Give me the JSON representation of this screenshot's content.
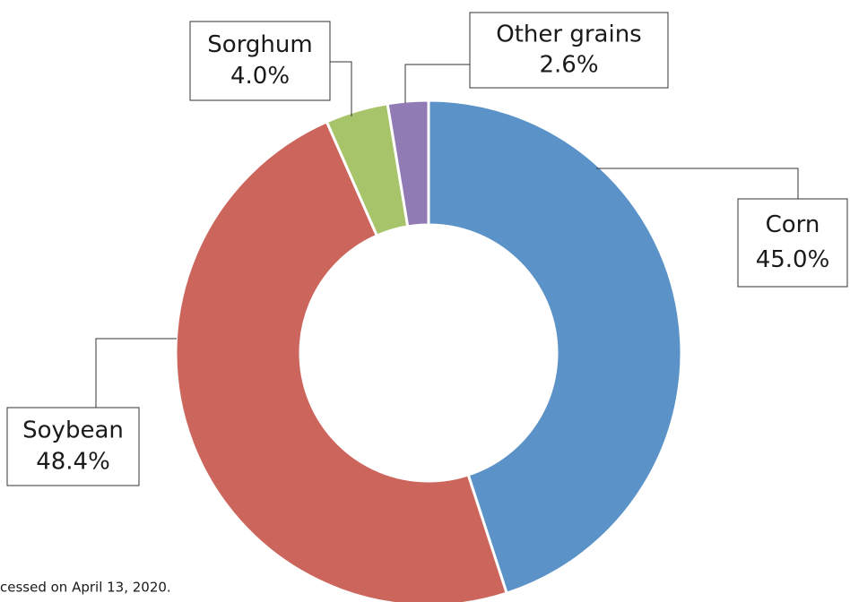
{
  "chart_data": {
    "type": "donut",
    "categories": [
      "Corn",
      "Soybean",
      "Sorghum",
      "Other grains"
    ],
    "values": [
      45.0,
      48.4,
      4.0,
      2.6
    ],
    "value_labels": [
      "45.0%",
      "48.4%",
      "4.0%",
      "2.6%"
    ],
    "colors": [
      "#5b92c8",
      "#cc665c",
      "#a8c46a",
      "#917bb5"
    ],
    "note": "cessed on April 13, 2020."
  }
}
